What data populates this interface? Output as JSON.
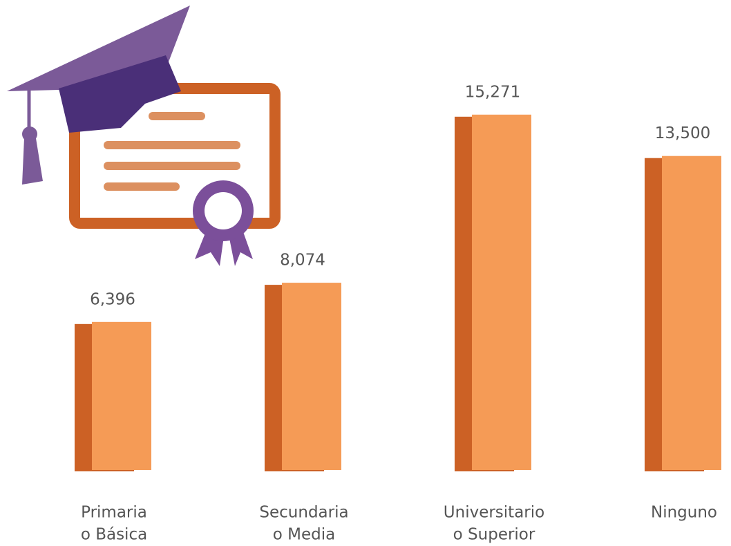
{
  "chart_data": {
    "type": "bar",
    "categories": [
      [
        "Primaria",
        "o Básica"
      ],
      [
        "Secundaria",
        "o Media"
      ],
      [
        "Universitario",
        "o Superior"
      ],
      [
        "Ninguno"
      ]
    ],
    "values": [
      6396,
      8074,
      15271,
      13500
    ],
    "value_labels": [
      "6,396",
      "8,074",
      "15,271",
      "13,500"
    ],
    "color": "#f59b56",
    "shadow_color": "#cc6125",
    "ylim": [
      0,
      20000
    ]
  }
}
